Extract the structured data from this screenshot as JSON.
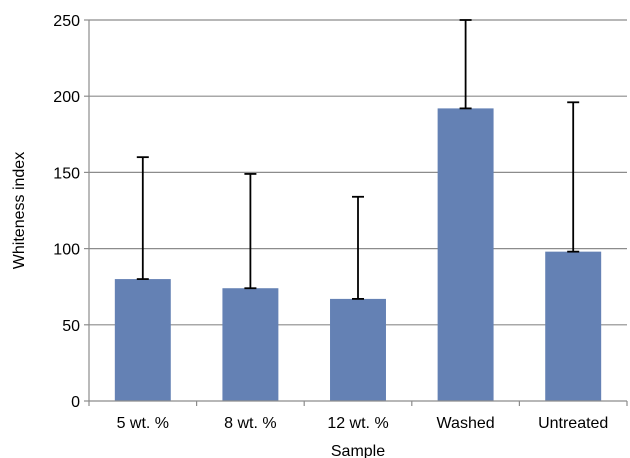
{
  "chart_data": {
    "type": "bar",
    "title": "",
    "xlabel": "Sample",
    "ylabel": "Whiteness index",
    "ylim": [
      0,
      250
    ],
    "yticks": [
      0,
      50,
      100,
      150,
      200,
      250
    ],
    "grid": true,
    "categories": [
      "5 wt. %",
      "8 wt. %",
      "12 wt. %",
      "Washed",
      "Untreated"
    ],
    "series": [
      {
        "values": [
          80,
          74,
          67,
          192,
          98
        ],
        "error_upper": [
          160,
          149,
          134,
          250,
          196
        ],
        "color": "#6481B4"
      }
    ]
  }
}
